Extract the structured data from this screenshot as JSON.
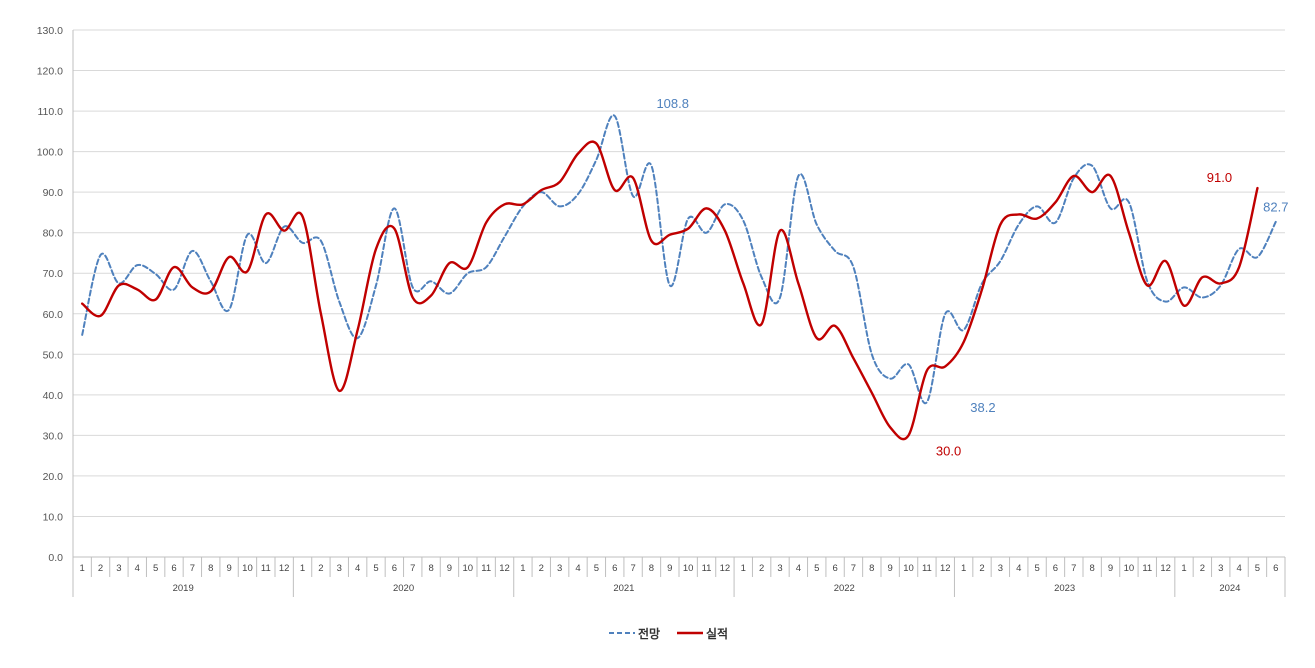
{
  "chart_data": {
    "type": "line",
    "title": "",
    "xlabel": "",
    "ylabel": "",
    "ylim": [
      0,
      130
    ],
    "y_ticks": [
      "0.0",
      "10.0",
      "20.0",
      "30.0",
      "40.0",
      "50.0",
      "60.0",
      "70.0",
      "80.0",
      "90.0",
      "100.0",
      "110.0",
      "120.0",
      "130.0"
    ],
    "grid": "horizontal",
    "legend_position": "bottom-center",
    "years": [
      {
        "label": "2019",
        "months": 12
      },
      {
        "label": "2020",
        "months": 12
      },
      {
        "label": "2021",
        "months": 12
      },
      {
        "label": "2022",
        "months": 12
      },
      {
        "label": "2023",
        "months": 12
      },
      {
        "label": "2024",
        "months": 6
      }
    ],
    "month_labels": [
      "1",
      "2",
      "3",
      "4",
      "5",
      "6",
      "7",
      "8",
      "9",
      "10",
      "11",
      "12"
    ],
    "series": [
      {
        "name": "전망",
        "color": "#4F81BD",
        "style": "dashed",
        "values": [
          54.8,
          74.5,
          67.5,
          72.0,
          69.8,
          66.0,
          75.5,
          68.0,
          61.0,
          79.5,
          72.5,
          81.5,
          77.5,
          78.0,
          63.0,
          54.0,
          67.0,
          86.0,
          66.5,
          68.0,
          65.0,
          70.0,
          71.5,
          79.0,
          86.5,
          90.0,
          86.5,
          89.5,
          98.0,
          108.8,
          89.0,
          96.5,
          67.0,
          83.5,
          80.0,
          87.0,
          83.0,
          69.0,
          64.0,
          94.0,
          82.0,
          75.5,
          71.5,
          50.0,
          44.0,
          47.5,
          38.2,
          60.0,
          56.0,
          67.5,
          73.0,
          82.0,
          86.5,
          82.5,
          93.5,
          96.5,
          86.0,
          87.5,
          68.0,
          63.0,
          66.5,
          64.0,
          67.0,
          76.0,
          74.0,
          82.7
        ]
      },
      {
        "name": "실적",
        "color": "#C00000",
        "style": "solid",
        "values": [
          62.5,
          59.5,
          67.0,
          66.0,
          63.5,
          71.5,
          66.5,
          65.5,
          74.0,
          70.5,
          84.5,
          80.5,
          84.0,
          60.0,
          41.0,
          56.0,
          76.0,
          81.0,
          64.0,
          64.5,
          72.5,
          71.5,
          82.5,
          87.0,
          87.0,
          90.5,
          92.5,
          99.5,
          102.0,
          90.5,
          93.5,
          78.0,
          79.5,
          81.0,
          86.0,
          80.5,
          67.5,
          57.5,
          80.5,
          67.5,
          54.0,
          57.0,
          49.0,
          40.5,
          32.0,
          30.0,
          46.0,
          47.0,
          53.0,
          66.0,
          82.0,
          84.5,
          83.5,
          87.5,
          94.0,
          90.0,
          94.0,
          80.0,
          67.0,
          73.0,
          62.0,
          69.0,
          67.5,
          71.5,
          91.0
        ]
      }
    ],
    "annotations": [
      {
        "text": "108.8",
        "series": 0,
        "value": 108.8,
        "month_index": 29,
        "dx": 58,
        "dy": -8
      },
      {
        "text": "38.2",
        "series": 0,
        "value": 38.2,
        "month_index": 46,
        "dx": 56,
        "dy": 10
      },
      {
        "text": "82.7",
        "series": 0,
        "value": 82.7,
        "month_index": 65,
        "dx": 0,
        "dy": -10
      },
      {
        "text": "30.0",
        "series": 1,
        "value": 30.0,
        "month_index": 45,
        "dx": 40,
        "dy": 20
      },
      {
        "text": "91.0",
        "series": 1,
        "value": 91.0,
        "month_index": 64,
        "dx": -38,
        "dy": -6
      }
    ]
  }
}
